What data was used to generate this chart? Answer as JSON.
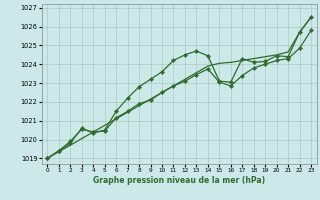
{
  "xlabel": "Graphe pression niveau de la mer (hPa)",
  "bg_color": "#cce8e8",
  "grid_color": "#99bbaa",
  "line_color": "#2d6e2d",
  "x": [
    0,
    1,
    2,
    3,
    4,
    5,
    6,
    7,
    8,
    9,
    10,
    11,
    12,
    13,
    14,
    15,
    16,
    17,
    18,
    19,
    20,
    21,
    22,
    23
  ],
  "line_smooth": [
    1019.0,
    1019.35,
    1019.7,
    1020.05,
    1020.4,
    1020.75,
    1021.1,
    1021.45,
    1021.8,
    1022.15,
    1022.5,
    1022.85,
    1023.2,
    1023.55,
    1023.9,
    1024.05,
    1024.1,
    1024.2,
    1024.3,
    1024.4,
    1024.5,
    1024.65,
    1025.7,
    1026.5
  ],
  "line_upper": [
    1019.0,
    1019.4,
    1019.8,
    1020.6,
    1020.35,
    1020.5,
    1021.5,
    1022.2,
    1022.8,
    1023.2,
    1023.6,
    1024.2,
    1024.5,
    1024.7,
    1024.45,
    1023.1,
    1023.05,
    1024.3,
    1024.1,
    1024.15,
    1024.45,
    1024.4,
    1025.7,
    1026.5
  ],
  "line_lower": [
    1019.0,
    1019.4,
    1019.9,
    1020.55,
    1020.4,
    1020.45,
    1021.15,
    1021.5,
    1021.9,
    1022.1,
    1022.5,
    1022.85,
    1023.1,
    1023.45,
    1023.75,
    1023.05,
    1022.85,
    1023.4,
    1023.8,
    1024.0,
    1024.2,
    1024.3,
    1024.85,
    1025.8
  ],
  "ylim": [
    1018.7,
    1027.2
  ],
  "xlim": [
    -0.5,
    23.5
  ],
  "yticks": [
    1019,
    1020,
    1021,
    1022,
    1023,
    1024,
    1025,
    1026,
    1027
  ],
  "xticks": [
    0,
    1,
    2,
    3,
    4,
    5,
    6,
    7,
    8,
    9,
    10,
    11,
    12,
    13,
    14,
    15,
    16,
    17,
    18,
    19,
    20,
    21,
    22,
    23
  ]
}
